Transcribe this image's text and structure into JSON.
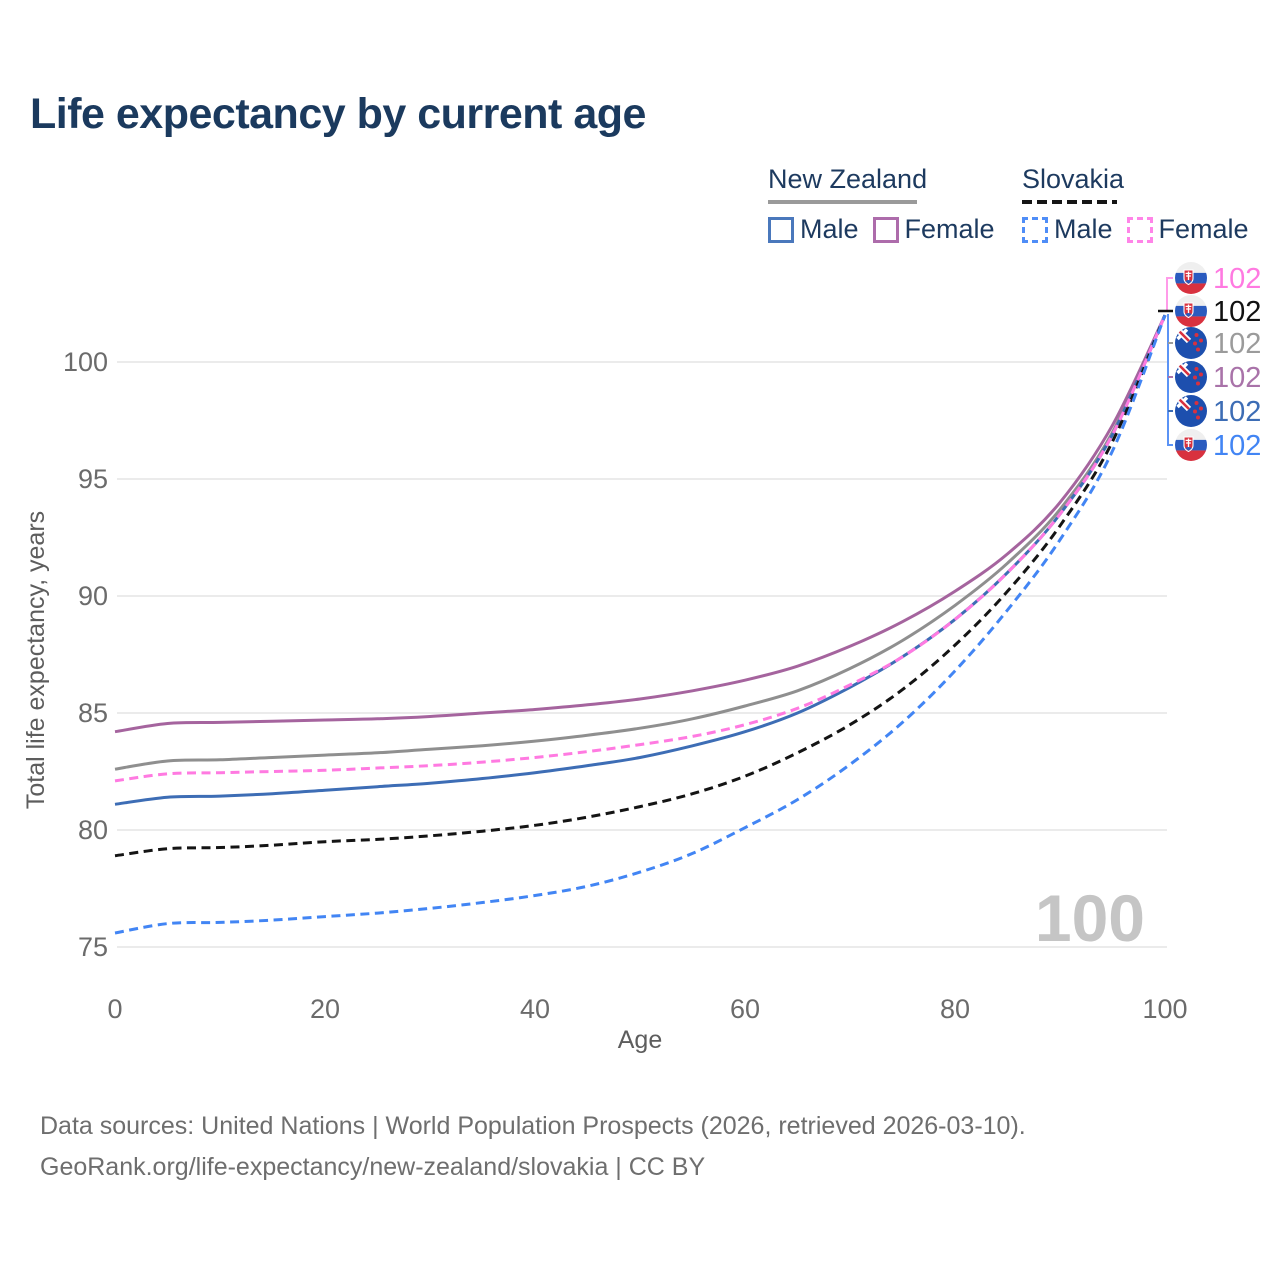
{
  "page": {
    "title": "Life expectancy by current age"
  },
  "legend": {
    "groups": [
      {
        "country": "New Zealand",
        "line_style": "solid",
        "line_color": "#9a9a9a",
        "items": [
          {
            "label": "Male",
            "color": "#4a78bc",
            "box_style": "solid"
          },
          {
            "label": "Female",
            "color": "#ad6cab",
            "box_style": "solid"
          }
        ]
      },
      {
        "country": "Slovakia",
        "line_style": "dashed",
        "line_color": "#151515",
        "items": [
          {
            "label": "Male",
            "color": "#4f8df7",
            "box_style": "dashed"
          },
          {
            "label": "Female",
            "color": "#ff85e8",
            "box_style": "dashed"
          }
        ]
      }
    ]
  },
  "footer": {
    "line1": "Data sources: United Nations | World Population Prospects (2026, retrieved 2026-03-10).",
    "line2": "GeoRank.org/life-expectancy/new-zealand/slovakia | CC BY"
  },
  "chart_data": {
    "type": "line",
    "title": "Life expectancy by current age",
    "xlabel": "Age",
    "ylabel": "Total life expectancy, years",
    "xlim": [
      0,
      100
    ],
    "ylim": [
      75,
      102.5
    ],
    "xticks": [
      0,
      20,
      40,
      60,
      80,
      100
    ],
    "yticks": [
      75,
      80,
      85,
      90,
      95,
      100
    ],
    "grid": "horizontal",
    "age_cursor_label": "100",
    "x": [
      0,
      5,
      10,
      15,
      20,
      25,
      30,
      35,
      40,
      45,
      50,
      55,
      60,
      65,
      70,
      75,
      80,
      85,
      90,
      95,
      100
    ],
    "series": [
      {
        "name": "New Zealand Both sexes",
        "country": "New Zealand",
        "sex": "Both sexes",
        "color": "#8f8f8f",
        "dash": "solid",
        "values": [
          82.6,
          82.95,
          83.0,
          83.1,
          83.2,
          83.3,
          83.45,
          83.6,
          83.8,
          84.05,
          84.35,
          84.75,
          85.3,
          85.95,
          86.9,
          88.1,
          89.6,
          91.4,
          93.7,
          97.0,
          102
        ]
      },
      {
        "name": "New Zealand Female",
        "country": "New Zealand",
        "sex": "Female",
        "color": "#a5649e",
        "dash": "solid",
        "values": [
          84.2,
          84.55,
          84.6,
          84.65,
          84.7,
          84.75,
          84.85,
          85.0,
          85.15,
          85.35,
          85.6,
          85.95,
          86.4,
          87.0,
          87.85,
          88.9,
          90.2,
          91.8,
          94.0,
          97.3,
          102
        ]
      },
      {
        "name": "New Zealand Male",
        "country": "New Zealand",
        "sex": "Male",
        "color": "#3d6db5",
        "dash": "solid",
        "values": [
          81.1,
          81.4,
          81.45,
          81.55,
          81.7,
          81.85,
          82.0,
          82.2,
          82.45,
          82.75,
          83.1,
          83.6,
          84.2,
          85.0,
          86.1,
          87.4,
          89.0,
          91.0,
          93.5,
          96.9,
          102
        ]
      },
      {
        "name": "Slovakia Both sexes",
        "country": "Slovakia",
        "sex": "Both sexes",
        "color": "#141414",
        "dash": "dashed",
        "values": [
          78.9,
          79.2,
          79.25,
          79.35,
          79.5,
          79.6,
          79.75,
          79.95,
          80.2,
          80.55,
          81.0,
          81.55,
          82.3,
          83.3,
          84.5,
          86.0,
          87.9,
          90.2,
          93.0,
          96.6,
          102
        ]
      },
      {
        "name": "Slovakia Female",
        "country": "Slovakia",
        "sex": "Female",
        "color": "#ff7ae1",
        "dash": "dashed",
        "values": [
          82.1,
          82.4,
          82.45,
          82.5,
          82.55,
          82.65,
          82.75,
          82.9,
          83.1,
          83.35,
          83.65,
          84.0,
          84.5,
          85.2,
          86.2,
          87.4,
          89.0,
          91.0,
          93.5,
          96.9,
          102
        ]
      },
      {
        "name": "Slovakia Male",
        "country": "Slovakia",
        "sex": "Male",
        "color": "#4285f4",
        "dash": "dashed",
        "values": [
          75.6,
          76.0,
          76.05,
          76.15,
          76.3,
          76.45,
          76.65,
          76.9,
          77.2,
          77.6,
          78.2,
          79.0,
          80.1,
          81.3,
          82.8,
          84.6,
          86.8,
          89.4,
          92.4,
          96.2,
          102
        ]
      }
    ],
    "end_labels": [
      {
        "value": "102",
        "series": "Slovakia Female",
        "flag": "sk",
        "color": "#ff7ae1",
        "leader": "up"
      },
      {
        "value": "102",
        "series": "Slovakia Both sexes",
        "flag": "sk",
        "color": "#111111",
        "leader": "tick"
      },
      {
        "value": "102",
        "series": "New Zealand Both sexes",
        "flag": "nz",
        "color": "#9b9b9b",
        "leader": "tick"
      },
      {
        "value": "102",
        "series": "New Zealand Female",
        "flag": "nz",
        "color": "#a973a9",
        "leader": "tick"
      },
      {
        "value": "102",
        "series": "New Zealand Male",
        "flag": "nz",
        "color": "#3d6db5",
        "leader": "tick"
      },
      {
        "value": "102",
        "series": "Slovakia Male",
        "flag": "sk",
        "color": "#4285f4",
        "leader": "down"
      }
    ]
  }
}
